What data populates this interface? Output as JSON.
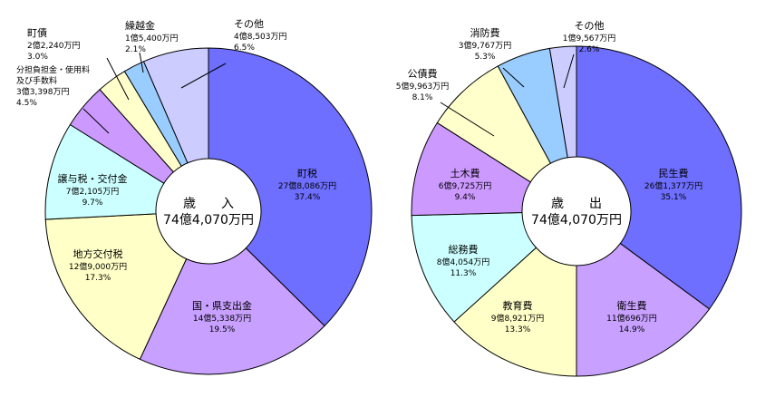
{
  "colors": {
    "blue": "#6b73ff",
    "purple": "#c9a3ff",
    "yellow": "#ffffc8",
    "cyan": "#ccffff",
    "violet": "#cc99ff",
    "lightyellow": "#ffffcc",
    "lightblue": "#99ccff",
    "lavender": "#ccccff",
    "orchid": "#cc99ff"
  },
  "chart_data": [
    {
      "type": "pie",
      "center_title": "歳　　入",
      "center_total": "74億4,070万円",
      "slices": [
        {
          "name": "町税",
          "amount": "27億8,086万円",
          "pct_label": "37.4%",
          "value": 37.4,
          "color": "#6e6eff"
        },
        {
          "name": "国・県支出金",
          "amount": "14億5,338万円",
          "pct_label": "19.5%",
          "value": 19.5,
          "color": "#c8a0ff"
        },
        {
          "name": "地方交付税",
          "amount": "12億9,000万円",
          "pct_label": "17.3%",
          "value": 17.3,
          "color": "#ffffc8"
        },
        {
          "name": "譲与税・交付金",
          "amount": "7億2,105万円",
          "pct_label": "9.7%",
          "value": 9.7,
          "color": "#ccffff"
        },
        {
          "name": "分担負担金・使用料\n及び手数料",
          "amount": "3億3,398万円",
          "pct_label": "4.5%",
          "value": 4.5,
          "color": "#cc99ff"
        },
        {
          "name": "町債",
          "amount": "2億2,240万円",
          "pct_label": "3.0%",
          "value": 3.0,
          "color": "#ffffcc"
        },
        {
          "name": "繰越金",
          "amount": "1億5,400万円",
          "pct_label": "2.1%",
          "value": 2.1,
          "color": "#99ccff"
        },
        {
          "name": "その他",
          "amount": "4億8,503万円",
          "pct_label": "6.5%",
          "value": 6.5,
          "color": "#ccccff"
        }
      ]
    },
    {
      "type": "pie",
      "center_title": "歳　　出",
      "center_total": "74億4,070万円",
      "slices": [
        {
          "name": "民生費",
          "amount": "26億1,377万円",
          "pct_label": "35.1%",
          "value": 35.1,
          "color": "#6e6eff"
        },
        {
          "name": "衛生費",
          "amount": "11億696万円",
          "pct_label": "14.9%",
          "value": 14.9,
          "color": "#c8a0ff"
        },
        {
          "name": "教育費",
          "amount": "9億8,921万円",
          "pct_label": "13.3%",
          "value": 13.3,
          "color": "#ffffc8"
        },
        {
          "name": "総務費",
          "amount": "8億4,054万円",
          "pct_label": "11.3%",
          "value": 11.3,
          "color": "#ccffff"
        },
        {
          "name": "土木費",
          "amount": "6億9,725万円",
          "pct_label": "9.4%",
          "value": 9.4,
          "color": "#cc99ff"
        },
        {
          "name": "公債費",
          "amount": "5億9,963万円",
          "pct_label": "8.1%",
          "value": 8.1,
          "color": "#ffffcc"
        },
        {
          "name": "消防費",
          "amount": "3億9,767万円",
          "pct_label": "5.3%",
          "value": 5.3,
          "color": "#99ccff"
        },
        {
          "name": "その他",
          "amount": "1億9,567万円",
          "pct_label": "2.6%",
          "value": 2.6,
          "color": "#ccccff"
        }
      ]
    }
  ]
}
